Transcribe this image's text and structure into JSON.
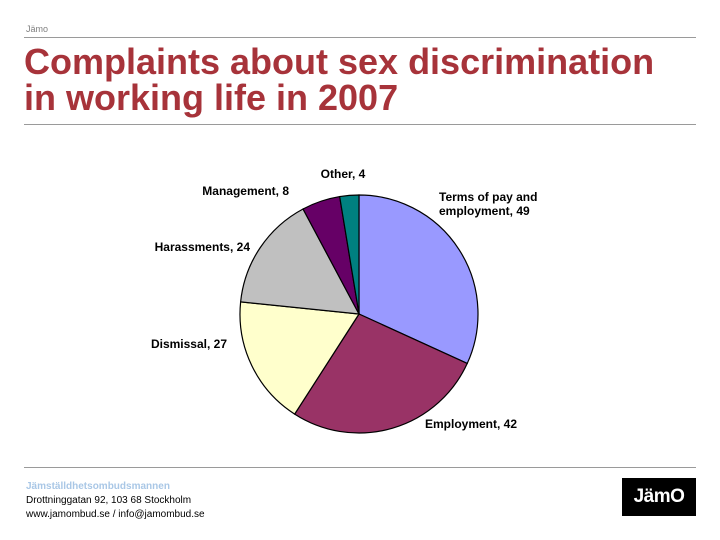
{
  "header": {
    "brand_small": "Jämo"
  },
  "title": {
    "line1": "Complaints about sex discrimination",
    "line2": "in working life in 2007"
  },
  "chart_data": {
    "type": "pie",
    "title": "",
    "slices": [
      {
        "label": "Terms of pay and employment",
        "value": 49,
        "color": "#9999ff",
        "label_lines": [
          "Terms of pay and",
          "employment, 49"
        ]
      },
      {
        "label": "Employment",
        "value": 42,
        "color": "#993366",
        "label_lines": [
          "Employment, 42"
        ]
      },
      {
        "label": "Dismissal",
        "value": 27,
        "color": "#ffffcc",
        "label_lines": [
          "Dismissal, 27"
        ]
      },
      {
        "label": "Harassments",
        "value": 24,
        "color": "#c0c0c0",
        "label_lines": [
          "Harassments, 24"
        ]
      },
      {
        "label": "Management",
        "value": 8,
        "color": "#660066",
        "label_lines": [
          "Management, 8"
        ]
      },
      {
        "label": "Other",
        "value": 4,
        "color": "#008080",
        "label_lines": [
          "Other, 4"
        ]
      }
    ],
    "start_angle": "12 o'clock",
    "direction": "clockwise",
    "legend": "none"
  },
  "footer": {
    "org": "Jämställdhetsombudsmannen",
    "address": "Drottninggatan 92, 103 68 Stockholm",
    "web": "www.jamombud.se / info@jamombud.se",
    "logo_text": "JämO"
  }
}
